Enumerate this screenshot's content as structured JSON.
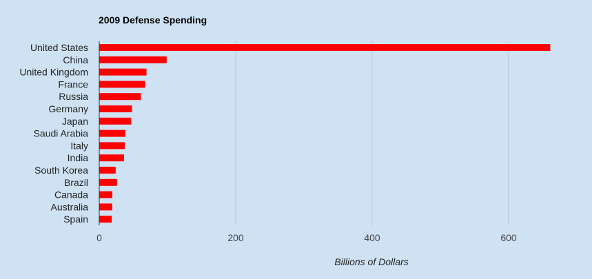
{
  "chart_data": {
    "type": "bar",
    "orientation": "horizontal",
    "title": "2009 Defense Spending",
    "xlabel": "Billions of Dollars",
    "ylabel": "",
    "categories": [
      "United States",
      "China",
      "United Kingdom",
      "France",
      "Russia",
      "Germany",
      "Japan",
      "Saudi Arabia",
      "Italy",
      "India",
      "South Korea",
      "Brazil",
      "Canada",
      "Australia",
      "Spain"
    ],
    "series": [
      {
        "name": "Billions of Dollars",
        "values": [
          661,
          98.8,
          69.3,
          67.3,
          61,
          48,
          46.8,
          38.2,
          37.4,
          36.3,
          24.1,
          26.1,
          19.2,
          19,
          18.3
        ]
      }
    ],
    "xlim": [
      0,
      700
    ],
    "xticks": [
      0,
      200,
      400,
      600
    ],
    "grid": true,
    "legend": "none",
    "colors": {
      "bar": "#ff0000",
      "background": "#cfe2f3",
      "grid": "#b8c4cf"
    }
  }
}
